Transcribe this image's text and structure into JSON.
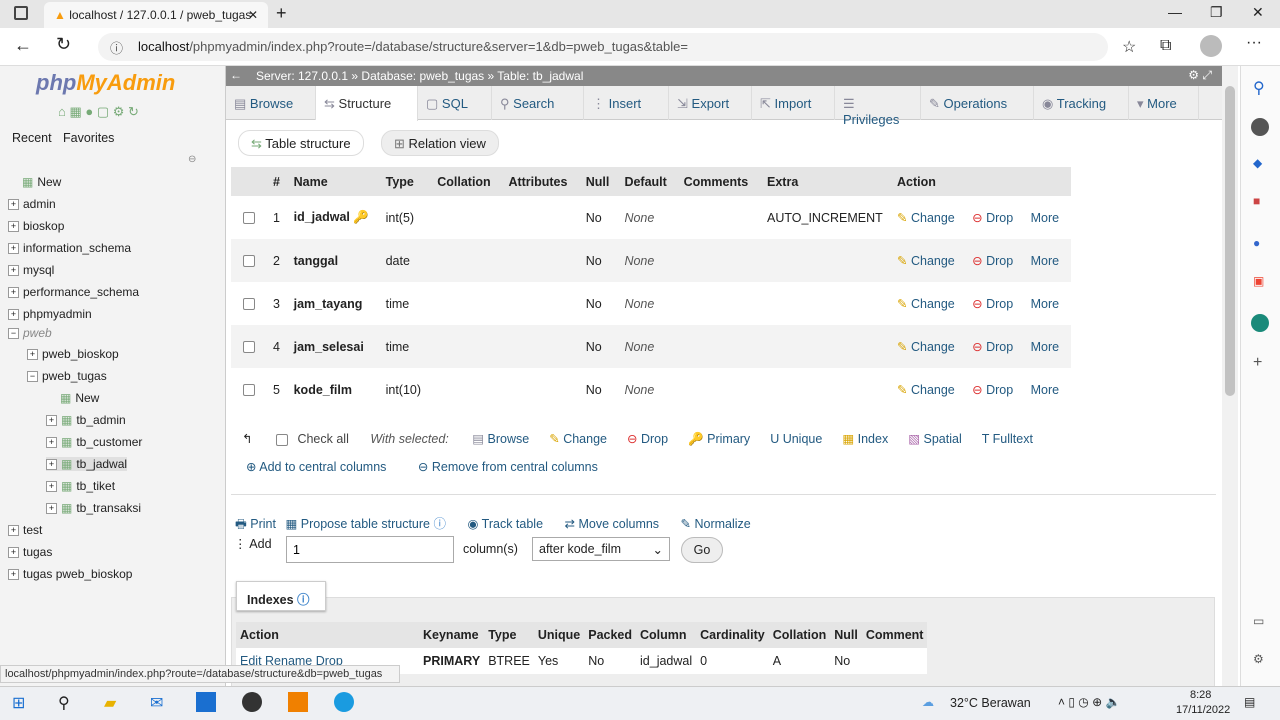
{
  "browser": {
    "tab_title": "localhost / 127.0.0.1 / pweb_tugas",
    "url_host": "localhost",
    "url_path": "/phpmyadmin/index.php?route=/database/structure&server=1&db=pweb_tugas&table=",
    "status_url": "localhost/phpmyadmin/index.php?route=/database/structure&db=pweb_tugas"
  },
  "sidebar": {
    "logo_php": "php",
    "logo_rest": "MyAdmin",
    "recent": "Recent",
    "favorites": "Favorites",
    "tree": [
      {
        "label": "New",
        "lvl": 0,
        "y": 183
      },
      {
        "label": "admin",
        "lvl": 0,
        "y": 205
      },
      {
        "label": "bioskop",
        "lvl": 0,
        "y": 227
      },
      {
        "label": "information_schema",
        "lvl": 0,
        "y": 249
      },
      {
        "label": "mysql",
        "lvl": 0,
        "y": 271
      },
      {
        "label": "performance_schema",
        "lvl": 0,
        "y": 293
      },
      {
        "label": "phpmyadmin",
        "lvl": 0,
        "y": 315
      },
      {
        "label": "pweb",
        "lvl": 0,
        "y": 334
      },
      {
        "label": "pweb_bioskop",
        "lvl": 1,
        "y": 355
      },
      {
        "label": "pweb_tugas",
        "lvl": 1,
        "y": 377
      },
      {
        "label": "New",
        "lvl": 2,
        "y": 399
      },
      {
        "label": "tb_admin",
        "lvl": 2,
        "y": 421
      },
      {
        "label": "tb_customer",
        "lvl": 2,
        "y": 443
      },
      {
        "label": "tb_jadwal",
        "lvl": 2,
        "y": 465
      },
      {
        "label": "tb_tiket",
        "lvl": 2,
        "y": 487
      },
      {
        "label": "tb_transaksi",
        "lvl": 2,
        "y": 509
      },
      {
        "label": "test",
        "lvl": 0,
        "y": 531
      },
      {
        "label": "tugas",
        "lvl": 0,
        "y": 553
      },
      {
        "label": "tugas pweb_bioskop",
        "lvl": 0,
        "y": 575
      }
    ]
  },
  "breadcrumb": {
    "server": "Server: 127.0.0.1",
    "database": "Database: pweb_tugas",
    "table": "Table: tb_jadwal"
  },
  "tabs": [
    "Browse",
    "Structure",
    "SQL",
    "Search",
    "Insert",
    "Export",
    "Import",
    "Privileges",
    "Operations",
    "Tracking",
    "More"
  ],
  "subtabs": [
    "Table structure",
    "Relation view"
  ],
  "structure": {
    "headers": [
      "#",
      "Name",
      "Type",
      "Collation",
      "Attributes",
      "Null",
      "Default",
      "Comments",
      "Extra",
      "Action"
    ],
    "rows": [
      {
        "n": "1",
        "name": "id_jadwal",
        "type": "int(5)",
        "null": "No",
        "default": "None",
        "extra": "AUTO_INCREMENT"
      },
      {
        "n": "2",
        "name": "tanggal",
        "type": "date",
        "null": "No",
        "default": "None",
        "extra": ""
      },
      {
        "n": "3",
        "name": "jam_tayang",
        "type": "time",
        "null": "No",
        "default": "None",
        "extra": ""
      },
      {
        "n": "4",
        "name": "jam_selesai",
        "type": "time",
        "null": "No",
        "default": "None",
        "extra": ""
      },
      {
        "n": "5",
        "name": "kode_film",
        "type": "int(10)",
        "null": "No",
        "default": "None",
        "extra": ""
      }
    ],
    "actions": {
      "change": "Change",
      "drop": "Drop",
      "more": "More"
    }
  },
  "bulk": {
    "check_all": "Check all",
    "with_selected": "With selected:",
    "items": [
      "Browse",
      "Change",
      "Drop",
      "Primary",
      "Unique",
      "Index",
      "Spatial",
      "Fulltext"
    ],
    "add_central": "Add to central columns",
    "remove_central": "Remove from central columns"
  },
  "tools": {
    "print": "Print",
    "propose": "Propose table structure",
    "track": "Track table",
    "move": "Move columns",
    "normalize": "Normalize"
  },
  "add_column": {
    "label": "Add",
    "value": "1",
    "unit": "column(s)",
    "position": "after kode_film",
    "go": "Go"
  },
  "indexes": {
    "title": "Indexes",
    "headers": [
      "Action",
      "Keyname",
      "Type",
      "Unique",
      "Packed",
      "Column",
      "Cardinality",
      "Collation",
      "Null",
      "Comment"
    ],
    "row": {
      "actions": "Edit  Rename  Drop",
      "keyname": "PRIMARY",
      "type": "BTREE",
      "unique": "Yes",
      "packed": "No",
      "column": "id_jadwal",
      "cardinality": "0",
      "collation": "A",
      "null": "No",
      "comment": ""
    }
  },
  "taskbar": {
    "weather": "32°C  Berawan",
    "time": "8:28",
    "date": "17/11/2022"
  }
}
